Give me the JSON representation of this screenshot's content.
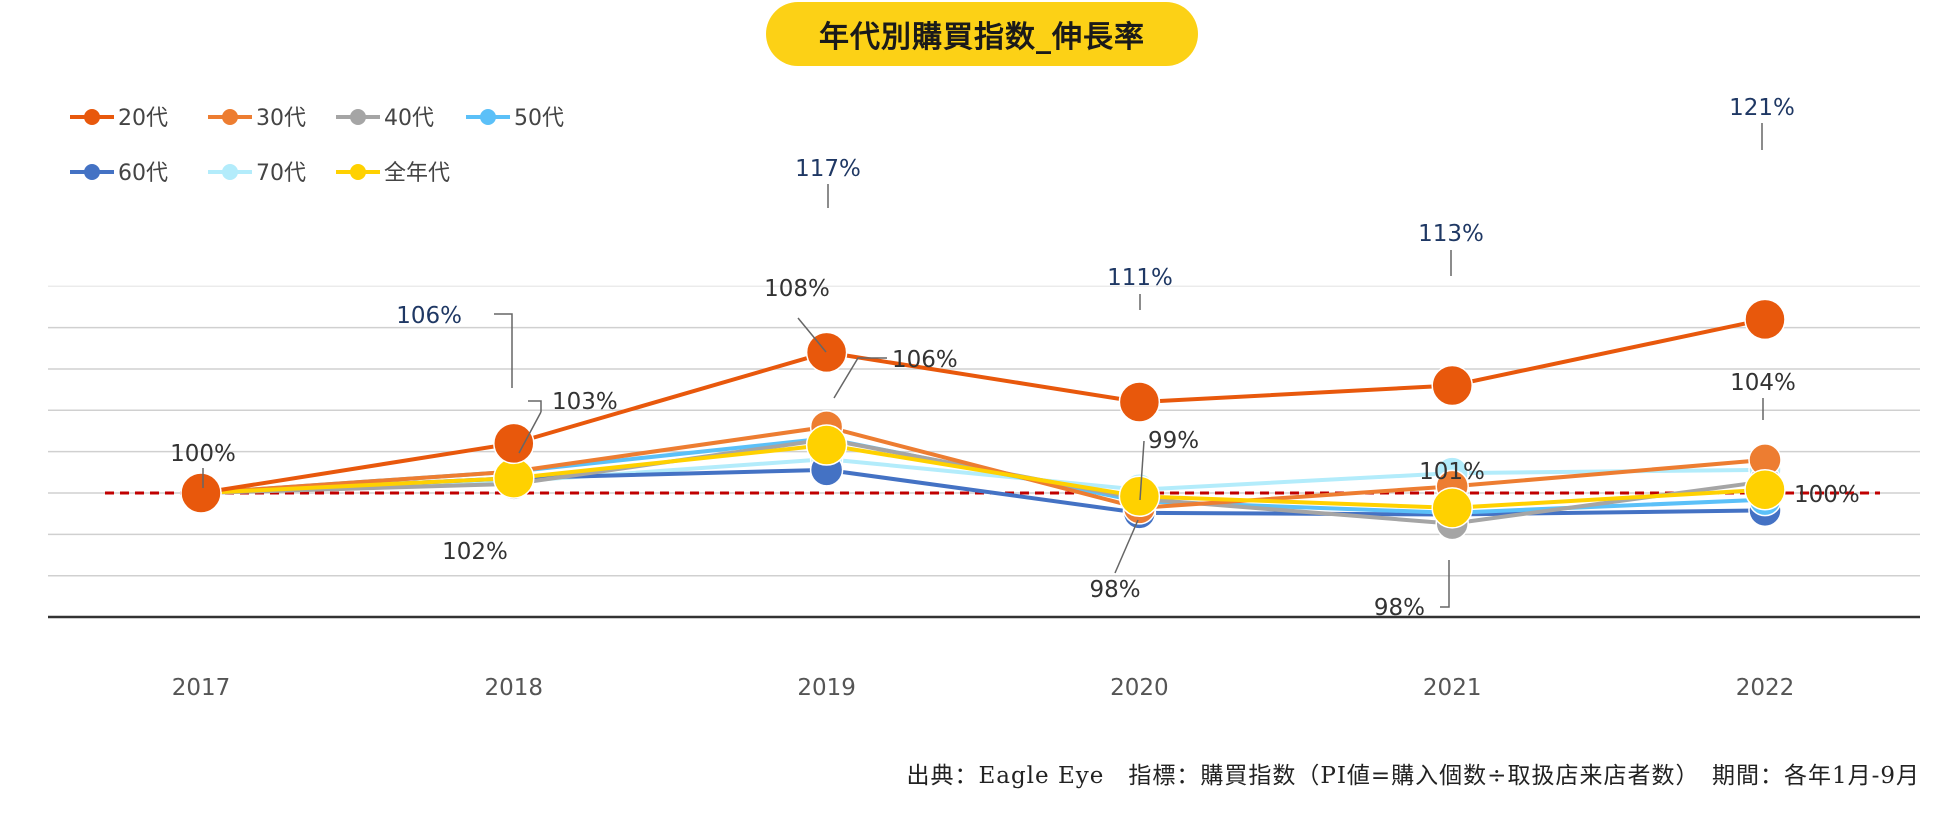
{
  "chart_data": {
    "type": "line",
    "title": "年代別購買指数_伸長率",
    "categories": [
      "2017",
      "2018",
      "2019",
      "2020",
      "2021",
      "2022"
    ],
    "ylim": [
      85,
      125
    ],
    "reference_line": 100,
    "series": [
      {
        "name": "20代",
        "color": "#e8580c",
        "values": [
          100,
          106,
          117,
          111,
          113,
          121
        ]
      },
      {
        "name": "30代",
        "color": "#ed7d31",
        "values": [
          100,
          102.6,
          108,
          98.2,
          100.8,
          104
        ]
      },
      {
        "name": "40代",
        "color": "#a5a5a5",
        "values": [
          100,
          101.1,
          106.5,
          99.3,
          96.3,
          101.4
        ]
      },
      {
        "name": "50代",
        "color": "#5bc0f8",
        "values": [
          100,
          102.6,
          106.6,
          99,
          97.6,
          99.2
        ]
      },
      {
        "name": "60代",
        "color": "#4472c4",
        "values": [
          100,
          101.8,
          102.8,
          97.6,
          97.4,
          97.9
        ]
      },
      {
        "name": "70代",
        "color": "#b3ecfb",
        "values": [
          100,
          101.4,
          104.1,
          100.4,
          102.4,
          102.8
        ]
      },
      {
        "name": "全年代",
        "color": "#ffd100",
        "values": [
          100,
          101.8,
          105.8,
          99.6,
          98.2,
          100.4
        ]
      }
    ],
    "annotations": [
      {
        "text": "100%",
        "color": "#333333"
      },
      {
        "text": "106%",
        "color": "#1f3864"
      },
      {
        "text": "103%",
        "color": "#333333"
      },
      {
        "text": "102%",
        "color": "#333333"
      },
      {
        "text": "117%",
        "color": "#1f3864"
      },
      {
        "text": "108%",
        "color": "#333333"
      },
      {
        "text": "106%",
        "color": "#333333"
      },
      {
        "text": "111%",
        "color": "#1f3864"
      },
      {
        "text": "99%",
        "color": "#333333"
      },
      {
        "text": "98%",
        "color": "#333333"
      },
      {
        "text": "113%",
        "color": "#1f3864"
      },
      {
        "text": "101%",
        "color": "#333333"
      },
      {
        "text": "98%",
        "color": "#333333"
      },
      {
        "text": "121%",
        "color": "#1f3864"
      },
      {
        "text": "104%",
        "color": "#333333"
      },
      {
        "text": "100%",
        "color": "#333333"
      }
    ]
  },
  "footer": "出典：Eagle Eye　指標：購買指数（PI値=購入個数÷取扱店来店者数）　期間：各年1月-9月"
}
